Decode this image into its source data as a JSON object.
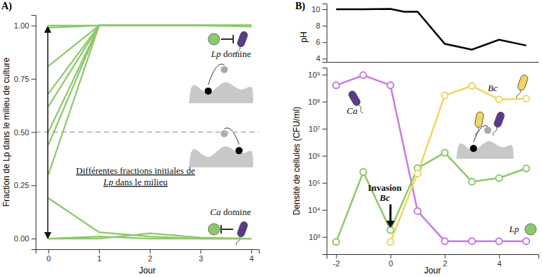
{
  "chart_data": [
    {
      "type": "line",
      "title": "A)",
      "x": [
        0,
        1,
        2,
        3,
        4
      ],
      "xlabel": "Jour",
      "ylabel": "Fraction de Lp dans le milieu de culture",
      "xlim": [
        -0.25,
        4.15
      ],
      "xticks": [
        0,
        1,
        2,
        3,
        4
      ],
      "ylim": [
        -0.05,
        1.05
      ],
      "yticks": [
        {
          "value": 0,
          "label": "0.00"
        },
        {
          "value": 0.25,
          "label": "0.25"
        },
        {
          "value": 0.5,
          "label": "0.50"
        },
        {
          "value": 0.75,
          "label": "0.75"
        },
        {
          "value": 1,
          "label": "1.00"
        }
      ],
      "color": "#8dc96b",
      "reference_line": 0.5,
      "annotations": [
        "Lp domine",
        "Différentes fractions initiales de\nLp dans le milieu",
        "Ca domine"
      ],
      "series": [
        {
          "values": [
            1.0,
            1.0,
            1.0,
            1.0,
            1.0
          ]
        },
        {
          "values": [
            0.99,
            1.0,
            1.0,
            1.0,
            0.995
          ]
        },
        {
          "values": [
            0.81,
            1.0,
            1.0,
            1.0,
            1.0
          ]
        },
        {
          "values": [
            0.68,
            1.0,
            1.0,
            1.0,
            1.0
          ]
        },
        {
          "values": [
            0.62,
            1.0,
            1.0,
            1.0,
            1.0
          ]
        },
        {
          "values": [
            0.5,
            1.0,
            1.0,
            1.0,
            1.0
          ]
        },
        {
          "values": [
            0.44,
            1.0,
            1.0,
            1.0,
            1.0
          ]
        },
        {
          "values": [
            0.3,
            1.0,
            1.0,
            1.0,
            1.0
          ]
        },
        {
          "values": [
            0.19,
            0.03,
            0.01,
            0.0,
            0.0
          ]
        },
        {
          "values": [
            0.0,
            0.0,
            0.025,
            0.005,
            0.0
          ]
        },
        {
          "values": [
            0.0,
            0.01,
            0.0,
            0.0,
            0.0
          ]
        }
      ]
    },
    {
      "type": "line",
      "title": "B)",
      "x": [
        -2,
        -1,
        0,
        0.5,
        1,
        2,
        3,
        4,
        5
      ],
      "ylabel": "pH",
      "xlim": [
        -2.35,
        5.45
      ],
      "ylim": [
        3.6,
        10.7
      ],
      "yticks": [
        4,
        6,
        8,
        10
      ],
      "tick_labels": "y",
      "color": "#000000",
      "values": [
        10,
        10,
        10.05,
        9.7,
        9.7,
        5.8,
        5.1,
        6.3,
        5.6
      ]
    },
    {
      "type": "line",
      "log": "y",
      "x": [
        -2,
        -1,
        0,
        1,
        2,
        3,
        4,
        5
      ],
      "xlabel": "Jour",
      "ylabel": "Densité de cellules (CFU/ml)",
      "xlim": [
        -2.35,
        5.45
      ],
      "xticks": [
        -2,
        0,
        2,
        4
      ],
      "ylim": [
        230,
        1800000000
      ],
      "yticks": [
        {
          "value": 1000,
          "label": "10³"
        },
        {
          "value": 10000,
          "label": "10⁴"
        },
        {
          "value": 100000,
          "label": "10⁵"
        },
        {
          "value": 1000000,
          "label": "10⁶"
        },
        {
          "value": 10000000,
          "label": "10⁷"
        },
        {
          "value": 100000000,
          "label": "10⁸"
        },
        {
          "value": 1000000000,
          "label": "10⁹"
        }
      ],
      "marker": "circle",
      "annotations": [
        "Invasion\nBc"
      ],
      "series": [
        {
          "name": "Ca",
          "color": "#c77be3",
          "values": [
            400000000,
            950000000,
            400000000,
            9000,
            700,
            700,
            700,
            700
          ]
        },
        {
          "name": "Lp",
          "color": "#8dc96b",
          "values": [
            650,
            250000,
            1800,
            350000,
            1300000,
            110000,
            150000,
            340000
          ]
        },
        {
          "name": "Bc",
          "color": "#f2d561",
          "values": [
            null,
            null,
            650,
            220000,
            170000000,
            380000000,
            120000000,
            130000000
          ]
        }
      ]
    }
  ]
}
